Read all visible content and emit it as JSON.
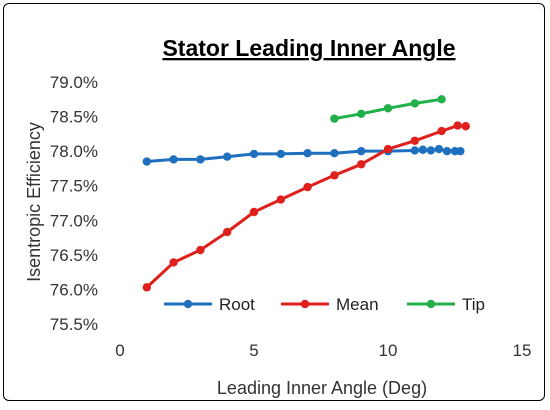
{
  "chart_data": {
    "type": "line",
    "title": "Stator Leading Inner Angle",
    "xlabel": "Leading Inner Angle (Deg)",
    "ylabel": "Isentropic Efficiency",
    "xlim": [
      0,
      15
    ],
    "ylim": [
      75.5,
      79.0
    ],
    "x_ticks": [
      0,
      5,
      10,
      15
    ],
    "x_tick_labels": [
      "0",
      "5",
      "10",
      "15"
    ],
    "y_ticks": [
      75.5,
      76.0,
      76.5,
      77.0,
      77.5,
      78.0,
      78.5,
      79.0
    ],
    "y_tick_labels": [
      "75.5%",
      "76.0%",
      "76.5%",
      "77.0%",
      "77.5%",
      "78.0%",
      "78.5%",
      "79.0%"
    ],
    "grid": false,
    "legend_position": "bottom",
    "series": [
      {
        "name": "Root",
        "color": "#1f6fbf",
        "x": [
          1,
          2,
          3,
          4,
          5,
          6,
          7,
          8,
          9,
          10,
          11,
          11.3,
          11.6,
          11.9,
          12.2,
          12.5,
          12.7
        ],
        "y": [
          77.85,
          77.88,
          77.88,
          77.92,
          77.96,
          77.96,
          77.97,
          77.97,
          78.0,
          78.0,
          78.01,
          78.02,
          78.01,
          78.03,
          78.0,
          78.0,
          78.0
        ]
      },
      {
        "name": "Mean",
        "color": "#e0201c",
        "x": [
          1,
          2,
          3,
          4,
          5,
          6,
          7,
          8,
          9,
          10,
          11,
          12,
          12.6,
          12.9
        ],
        "y": [
          76.03,
          76.39,
          76.57,
          76.83,
          77.12,
          77.3,
          77.48,
          77.65,
          77.81,
          78.03,
          78.15,
          78.29,
          78.37,
          78.36
        ]
      },
      {
        "name": "Tip",
        "color": "#22b04b",
        "x": [
          8,
          9,
          10,
          11,
          12
        ],
        "y": [
          78.47,
          78.54,
          78.62,
          78.69,
          78.75
        ]
      }
    ]
  }
}
